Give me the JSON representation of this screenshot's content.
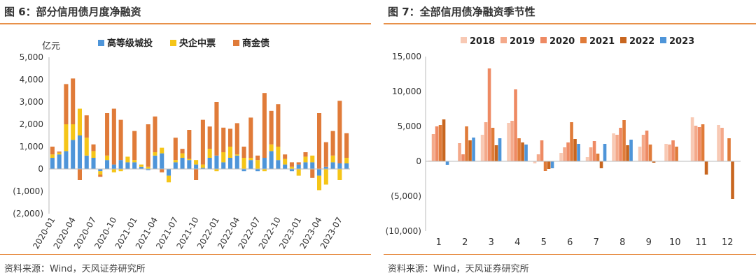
{
  "figures": [
    {
      "title": "图 6：部分信用债月度净融资",
      "source": "资料来源：Wind，天风证券研究所"
    },
    {
      "title": "图 7：全部信用债净融资季节性",
      "source": "资料来源：Wind，天风证券研究所"
    }
  ],
  "chart_data": [
    {
      "type": "bar",
      "stacked": true,
      "title": "图 6：部分信用债月度净融资",
      "ylabel": "亿元",
      "ylim": [
        -2000,
        5000
      ],
      "yticks": [
        "(2,000)",
        "(1,000)",
        "0",
        "1,000",
        "2,000",
        "3,000",
        "4,000",
        "5,000"
      ],
      "legend_position": "top",
      "categories": [
        "2020-01",
        "2020-02",
        "2020-03",
        "2020-04",
        "2020-05",
        "2020-06",
        "2020-07",
        "2020-08",
        "2020-09",
        "2020-10",
        "2020-11",
        "2020-12",
        "2021-01",
        "2021-02",
        "2021-03",
        "2021-04",
        "2021-05",
        "2021-06",
        "2021-07",
        "2021-08",
        "2021-09",
        "2021-10",
        "2021-11",
        "2021-12",
        "2022-01",
        "2022-02",
        "2022-03",
        "2022-04",
        "2022-05",
        "2022-06",
        "2022-07",
        "2022-08",
        "2022-09",
        "2022-10",
        "2022-11",
        "2022-12",
        "2023-01",
        "2023-02",
        "2023-03",
        "2023-04",
        "2023-05",
        "2023-06",
        "2023-07",
        "2023-08"
      ],
      "tick_labels": [
        "2020-01",
        "2020-04",
        "2020-07",
        "2020-10",
        "2021-01",
        "2021-04",
        "2021-07",
        "2021-10",
        "2022-01",
        "2022-04",
        "2022-07",
        "2022-10",
        "2023-01",
        "2023-04",
        "2023-07"
      ],
      "series": [
        {
          "name": "高等级城投",
          "color": "#4e95d9",
          "values": [
            500,
            650,
            800,
            1300,
            1500,
            600,
            500,
            -100,
            400,
            200,
            400,
            300,
            300,
            100,
            -50,
            600,
            700,
            -300,
            300,
            500,
            400,
            200,
            50,
            500,
            600,
            300,
            500,
            600,
            -100,
            400,
            -100,
            500,
            800,
            400,
            200,
            -100,
            200,
            300,
            300,
            -300,
            100,
            300,
            250,
            250
          ]
        },
        {
          "name": "央企中票",
          "color": "#f5c518",
          "values": [
            150,
            80,
            1200,
            700,
            1200,
            800,
            300,
            -150,
            200,
            -150,
            -100,
            250,
            100,
            100,
            100,
            150,
            250,
            -300,
            100,
            200,
            50,
            200,
            150,
            400,
            -100,
            450,
            500,
            50,
            500,
            100,
            400,
            -100,
            300,
            600,
            250,
            100,
            -300,
            250,
            300,
            -650,
            -700,
            300,
            -500,
            250
          ]
        },
        {
          "name": "商金债",
          "color": "#e07b39",
          "values": [
            350,
            50,
            1800,
            2050,
            -500,
            1000,
            300,
            -100,
            1900,
            2500,
            1800,
            0,
            1300,
            0,
            1900,
            1600,
            -150,
            0,
            1000,
            200,
            1300,
            -500,
            2000,
            1000,
            2400,
            1100,
            800,
            1400,
            500,
            1800,
            200,
            2900,
            1500,
            1900,
            200,
            200,
            100,
            200,
            -400,
            2500,
            1100,
            1100,
            2800,
            1100
          ]
        }
      ]
    },
    {
      "type": "bar",
      "title": "图 7：全部信用债净融资季节性",
      "ylim": [
        -10000,
        15000
      ],
      "yticks": [
        "(10,000)",
        "(5,000)",
        "0",
        "5,000",
        "10,000",
        "15,000"
      ],
      "legend_position": "top",
      "categories": [
        "1",
        "2",
        "3",
        "4",
        "5",
        "6",
        "7",
        "8",
        "9",
        "10",
        "11",
        "12"
      ],
      "series": [
        {
          "name": "2018",
          "color": "#f8c9b4",
          "values": [
            100,
            0,
            3800,
            5500,
            -300,
            1200,
            600,
            4000,
            2100,
            2500,
            6300,
            5200
          ]
        },
        {
          "name": "2019",
          "color": "#f4a98a",
          "values": [
            3900,
            2600,
            5600,
            5800,
            1000,
            2000,
            2000,
            3800,
            3800,
            2400,
            5100,
            4800
          ]
        },
        {
          "name": "2020",
          "color": "#ee8a63",
          "values": [
            5000,
            1000,
            13300,
            10300,
            3000,
            2700,
            2900,
            4800,
            4400,
            3000,
            4900,
            0
          ]
        },
        {
          "name": "2021",
          "color": "#e07b39",
          "values": [
            5200,
            5000,
            4800,
            3300,
            -1400,
            5600,
            1100,
            5900,
            2400,
            2100,
            5300,
            3300
          ]
        },
        {
          "name": "2022",
          "color": "#c8661f",
          "values": [
            6000,
            3000,
            2300,
            2700,
            -1100,
            3200,
            -1000,
            2300,
            -200,
            0,
            -1900,
            -5400
          ]
        },
        {
          "name": "2023",
          "color": "#4e95d9",
          "values": [
            -500,
            3400,
            3300,
            2400,
            -1000,
            2500,
            2500,
            3100,
            0,
            0,
            0,
            0
          ]
        }
      ]
    }
  ]
}
